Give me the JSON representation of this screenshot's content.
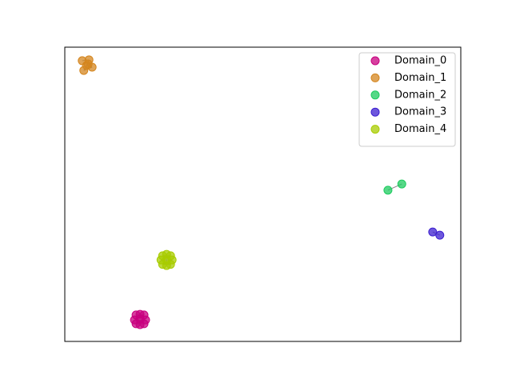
{
  "chart_data": {
    "type": "scatter",
    "xlim": [
      0,
      100
    ],
    "ylim": [
      0,
      100
    ],
    "legend": "upper right",
    "series": [
      {
        "name": "Domain_0",
        "color": "#c8007f",
        "x": [
          18,
          20,
          17.6,
          20.4,
          18,
          20,
          19,
          19,
          19
        ],
        "y": [
          9,
          9,
          7.3,
          7.3,
          6,
          6,
          9.2,
          5.7,
          7.6
        ]
      },
      {
        "name": "Domain_1",
        "color": "#d4861f",
        "x": [
          4.4,
          6.1,
          5.5,
          6.9,
          4.8,
          5.9
        ],
        "y": [
          95.4,
          95.7,
          93.8,
          93.2,
          92.1,
          94.3
        ]
      },
      {
        "name": "Domain_2",
        "color": "#1ecb5f",
        "x": [
          81.6,
          85.1
        ],
        "y": [
          51.4,
          53.5
        ]
      },
      {
        "name": "Domain_3",
        "color": "#3c1fd0",
        "x": [
          92.9,
          94.7
        ],
        "y": [
          37.2,
          36.1
        ]
      },
      {
        "name": "Domain_4",
        "color": "#a8cc00",
        "x": [
          24.7,
          26.7,
          24.3,
          27.1,
          24.7,
          26.7,
          25.7,
          25.7,
          25.7
        ],
        "y": [
          29.1,
          29.1,
          27.7,
          27.7,
          26.2,
          26.2,
          29.6,
          25.8,
          27.7
        ]
      }
    ]
  }
}
